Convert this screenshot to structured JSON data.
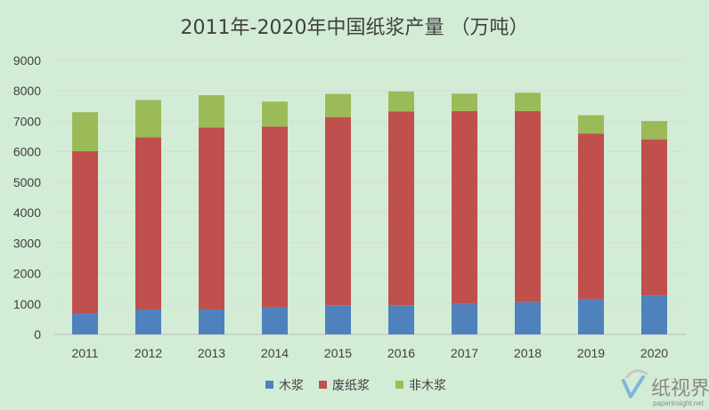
{
  "chart_data": {
    "type": "bar",
    "stacked": true,
    "title": "2011年-2020年中国纸浆产量 （万吨）",
    "xlabel": "",
    "ylabel": "",
    "categories": [
      "2011",
      "2012",
      "2013",
      "2014",
      "2015",
      "2016",
      "2017",
      "2018",
      "2019",
      "2020"
    ],
    "ylim": [
      0,
      9000
    ],
    "yticks": [
      0,
      1000,
      2000,
      3000,
      4000,
      5000,
      6000,
      7000,
      8000,
      9000
    ],
    "grid": true,
    "legend_position": "bottom",
    "series": [
      {
        "name": "木浆",
        "color": "#4f81bd",
        "values": [
          700,
          820,
          820,
          880,
          960,
          960,
          1000,
          1060,
          1150,
          1280
        ]
      },
      {
        "name": "废纸浆",
        "color": "#c0504d",
        "values": [
          5320,
          5660,
          5980,
          5950,
          6180,
          6360,
          6340,
          6280,
          5450,
          5130
        ]
      },
      {
        "name": "非木浆",
        "color": "#9bbb59",
        "values": [
          1280,
          1220,
          1060,
          820,
          760,
          660,
          570,
          600,
          600,
          600
        ]
      }
    ]
  },
  "watermark": {
    "text": "纸视界",
    "subtext": "paperinsight.net"
  }
}
